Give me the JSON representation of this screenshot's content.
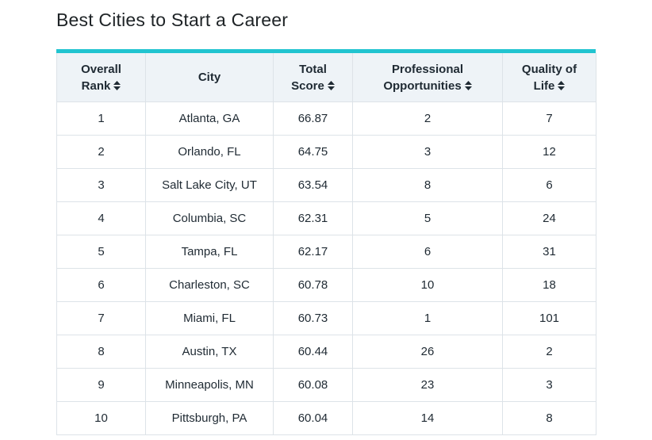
{
  "page": {
    "title": "Best Cities to Start a Career"
  },
  "colors": {
    "accent_bar": "#21c4d0",
    "header_bg": "#eef3f7",
    "border": "#dde3e8",
    "text": "#1f2a33"
  },
  "table": {
    "headers": [
      {
        "line1": "Overall",
        "line2": "Rank",
        "sortable": true,
        "icon": "sort-icon"
      },
      {
        "line1": "City",
        "line2": "",
        "sortable": false,
        "icon": ""
      },
      {
        "line1": "Total",
        "line2": "Score",
        "sortable": true,
        "icon": "sort-icon"
      },
      {
        "line1": "Professional",
        "line2": "Opportunities",
        "sortable": true,
        "icon": "sort-icon"
      },
      {
        "line1": "Quality of",
        "line2": "Life",
        "sortable": true,
        "icon": "sort-icon"
      }
    ],
    "rows": [
      [
        "1",
        "Atlanta, GA",
        "66.87",
        "2",
        "7"
      ],
      [
        "2",
        "Orlando, FL",
        "64.75",
        "3",
        "12"
      ],
      [
        "3",
        "Salt Lake City, UT",
        "63.54",
        "8",
        "6"
      ],
      [
        "4",
        "Columbia, SC",
        "62.31",
        "5",
        "24"
      ],
      [
        "5",
        "Tampa, FL",
        "62.17",
        "6",
        "31"
      ],
      [
        "6",
        "Charleston, SC",
        "60.78",
        "10",
        "18"
      ],
      [
        "7",
        "Miami, FL",
        "60.73",
        "1",
        "101"
      ],
      [
        "8",
        "Austin, TX",
        "60.44",
        "26",
        "2"
      ],
      [
        "9",
        "Minneapolis, MN",
        "60.08",
        "23",
        "3"
      ],
      [
        "10",
        "Pittsburgh, PA",
        "60.04",
        "14",
        "8"
      ]
    ]
  }
}
